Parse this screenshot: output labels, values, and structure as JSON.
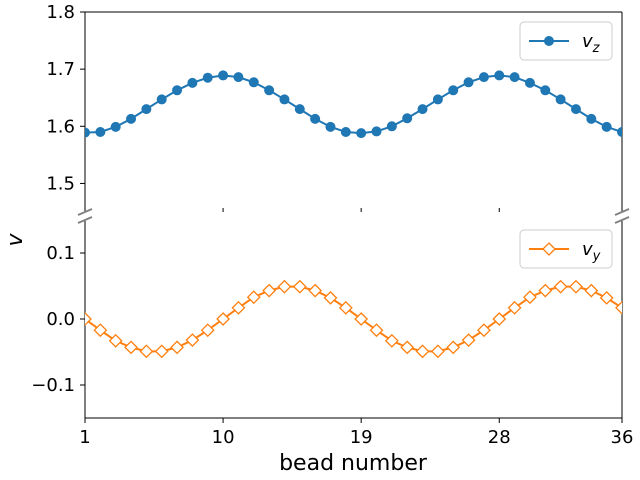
{
  "chart_data": {
    "type": "line",
    "xlabel": "bead number",
    "ylabel": "v",
    "x_ticks": [
      1,
      10,
      19,
      28,
      36
    ],
    "x_tick_labels": [
      "1",
      "10",
      "19",
      "28",
      "36"
    ],
    "xlim": [
      1,
      36
    ],
    "panels": [
      {
        "name": "top",
        "ylim": [
          1.45,
          1.8
        ],
        "y_ticks": [
          1.5,
          1.6,
          1.7,
          1.8
        ],
        "y_tick_labels": [
          "1.5",
          "1.6",
          "1.7",
          "1.8"
        ],
        "legend_position": "top-right",
        "series": [
          {
            "name": "v_z",
            "legend_main": "v",
            "legend_sub": "z",
            "color": "#1f77b4",
            "marker": "circle-filled",
            "x": [
              1,
              2,
              3,
              4,
              5,
              6,
              7,
              8,
              9,
              10,
              11,
              12,
              13,
              14,
              15,
              16,
              17,
              18,
              19,
              20,
              21,
              22,
              23,
              24,
              25,
              26,
              27,
              28,
              29,
              30,
              31,
              32,
              33,
              34,
              35,
              36
            ],
            "values": [
              1.589,
              1.59,
              1.599,
              1.613,
              1.63,
              1.647,
              1.663,
              1.676,
              1.685,
              1.689,
              1.686,
              1.677,
              1.663,
              1.647,
              1.63,
              1.613,
              1.599,
              1.59,
              1.588,
              1.591,
              1.6,
              1.614,
              1.63,
              1.647,
              1.663,
              1.677,
              1.686,
              1.689,
              1.686,
              1.676,
              1.663,
              1.647,
              1.63,
              1.613,
              1.599,
              1.59
            ]
          }
        ]
      },
      {
        "name": "bottom",
        "ylim": [
          -0.15,
          0.15
        ],
        "y_ticks": [
          -0.1,
          0.0,
          0.1
        ],
        "y_tick_labels": [
          "−0.1",
          "0.0",
          "0.1"
        ],
        "legend_position": "top-right",
        "series": [
          {
            "name": "v_y",
            "legend_main": "v",
            "legend_sub": "y",
            "color": "#ff7f0e",
            "marker": "diamond-open",
            "x": [
              1,
              2,
              3,
              4,
              5,
              6,
              7,
              8,
              9,
              10,
              11,
              12,
              13,
              14,
              15,
              16,
              17,
              18,
              19,
              20,
              21,
              22,
              23,
              24,
              25,
              26,
              27,
              28,
              29,
              30,
              31,
              32,
              33,
              34,
              35,
              36
            ],
            "values": [
              0.0,
              -0.017,
              -0.033,
              -0.043,
              -0.049,
              -0.049,
              -0.043,
              -0.032,
              -0.017,
              0.0,
              0.017,
              0.033,
              0.043,
              0.049,
              0.049,
              0.043,
              0.032,
              0.017,
              0.0,
              -0.017,
              -0.033,
              -0.043,
              -0.049,
              -0.049,
              -0.043,
              -0.032,
              -0.017,
              0.0,
              0.017,
              0.033,
              0.043,
              0.049,
              0.049,
              0.043,
              0.032,
              0.017
            ]
          }
        ]
      }
    ]
  }
}
